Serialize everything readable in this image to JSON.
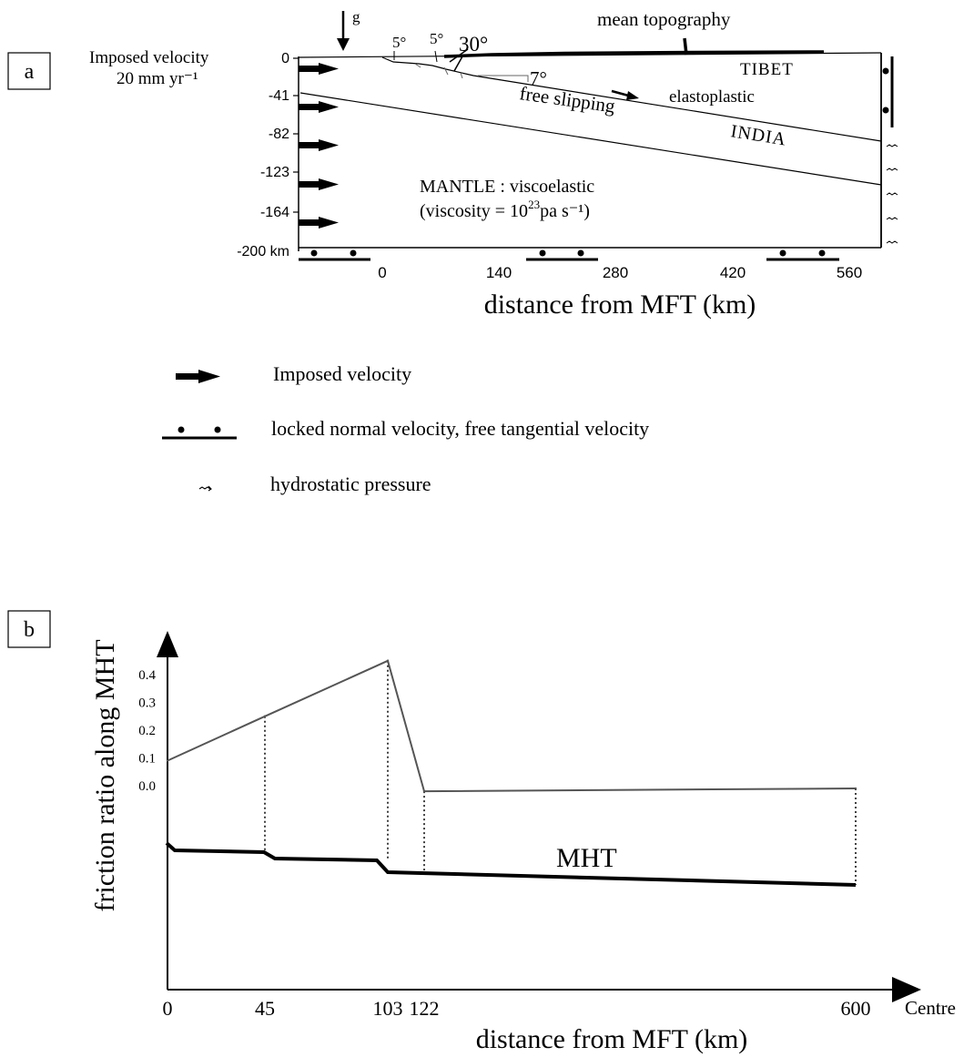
{
  "panel_a": {
    "tag": "a",
    "gravity": "g",
    "imposed_velocity_line1": "Imposed velocity",
    "imposed_velocity_line2": "20 mm yr⁻¹",
    "mean_topography": "mean topography",
    "angle_a": "5°",
    "angle_b": "5°",
    "angle_c": "30°",
    "angle_d": "7°",
    "tibet": "TIBET",
    "elastoplastic": "elastoplastic",
    "free_slipping": "free slipping",
    "india": "INDIA",
    "mantle_line1": "MANTLE : viscoelastic",
    "mantle_line2_pre": "(viscosity = 10",
    "mantle_line2_sup": "23",
    "mantle_line2_post": "pa s⁻¹)",
    "depth_ticks": [
      "0",
      "-41",
      "-82",
      "-123",
      "-164",
      "-200 km"
    ],
    "distance_ticks": [
      "0",
      "140",
      "280",
      "420",
      "560"
    ],
    "xlabel": "distance from MFT (km)"
  },
  "legend": {
    "imposed_velocity": "Imposed velocity",
    "locked": "locked normal velocity, free tangential velocity",
    "hydrostatic": "hydrostatic pressure"
  },
  "chart_data": {
    "type": "line",
    "tag": "b",
    "ylabel": "friction ratio along MHT",
    "xlabel": "distance from MFT (km)",
    "x_ticks": [
      "0",
      "45",
      "103",
      "122",
      "600"
    ],
    "x_end_label": "Centre",
    "y_ticks": [
      "0.4",
      "0.3",
      "0.2",
      "0.1",
      "0.0"
    ],
    "ylim": [
      0.0,
      0.4
    ],
    "series": [
      {
        "x": [
          0,
          45,
          103,
          122,
          600
        ],
        "y": [
          0.09,
          0.25,
          0.45,
          -0.02,
          -0.01
        ]
      }
    ],
    "mht_label": "MHT"
  }
}
